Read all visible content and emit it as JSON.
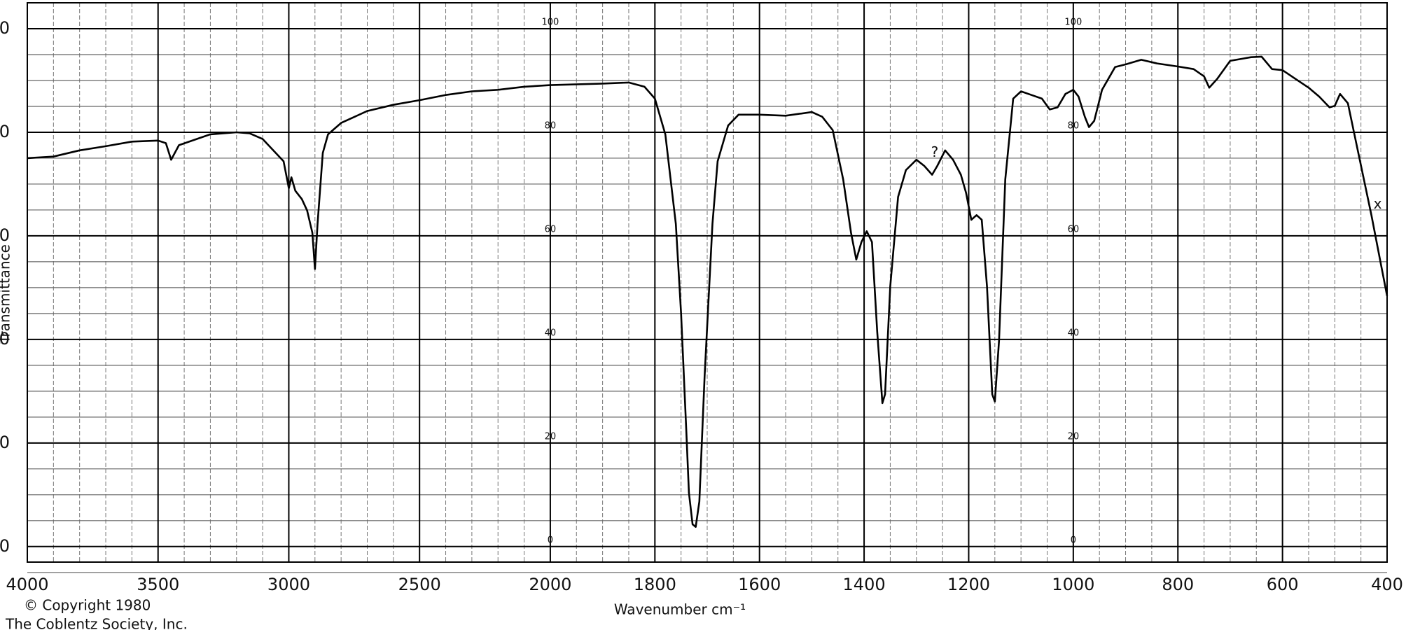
{
  "chart_data": {
    "type": "line",
    "x_label": "Wavenumber cm⁻¹",
    "y_label": "Transmittance",
    "copyright": [
      "© Copyright 1980",
      "The Coblentz Society, Inc."
    ],
    "xlim": [
      4000,
      400
    ],
    "x_scale_change": 2000,
    "ylim": [
      -3,
      105
    ],
    "xticks": [
      4000,
      3500,
      3000,
      2500,
      2000,
      1800,
      1600,
      1400,
      1200,
      1000,
      800,
      600,
      400
    ],
    "yticks": [
      0,
      20,
      40,
      60,
      80,
      100
    ],
    "inner_scale_at": [
      2000,
      1000
    ],
    "grid": true,
    "annotations": [
      {
        "text": "?",
        "x": 1265,
        "y": 76
      },
      {
        "text": "x",
        "x": 418,
        "y": 66
      }
    ],
    "series": [
      {
        "name": "Transmittance",
        "color": "#000000",
        "x": [
          4000,
          3900,
          3800,
          3700,
          3600,
          3500,
          3470,
          3450,
          3420,
          3300,
          3200,
          3150,
          3100,
          3050,
          3020,
          3000,
          2990,
          2975,
          2950,
          2930,
          2910,
          2900,
          2890,
          2870,
          2850,
          2800,
          2700,
          2600,
          2500,
          2400,
          2300,
          2200,
          2100,
          2000,
          1900,
          1850,
          1820,
          1800,
          1780,
          1760,
          1750,
          1740,
          1735,
          1728,
          1722,
          1715,
          1705,
          1690,
          1680,
          1660,
          1640,
          1600,
          1550,
          1500,
          1480,
          1460,
          1440,
          1425,
          1415,
          1405,
          1395,
          1385,
          1375,
          1365,
          1360,
          1350,
          1335,
          1320,
          1300,
          1285,
          1270,
          1260,
          1245,
          1230,
          1215,
          1205,
          1195,
          1185,
          1175,
          1165,
          1155,
          1150,
          1142,
          1130,
          1115,
          1100,
          1080,
          1060,
          1045,
          1030,
          1015,
          1000,
          990,
          978,
          970,
          960,
          945,
          920,
          900,
          870,
          840,
          800,
          770,
          750,
          740,
          725,
          700,
          660,
          640,
          620,
          600,
          575,
          550,
          530,
          510,
          500,
          490,
          475,
          455,
          430,
          410,
          400
        ],
        "values": [
          75,
          75.3,
          76.5,
          77.3,
          78.2,
          78.4,
          77.9,
          74.7,
          77.5,
          79.6,
          80,
          79.8,
          78.7,
          76,
          74.4,
          69.2,
          71.3,
          68.7,
          67.1,
          64.9,
          60.6,
          53.6,
          62.3,
          76,
          79.6,
          81.8,
          84.1,
          85.3,
          86.2,
          87.2,
          87.9,
          88.2,
          88.8,
          89.1,
          89.4,
          89.6,
          88.8,
          86.5,
          79.6,
          62.3,
          45,
          22.5,
          10.4,
          4.3,
          3.8,
          8.7,
          32.9,
          62.3,
          74.4,
          81.3,
          83.4,
          83.4,
          83.2,
          83.9,
          83,
          80.4,
          70.9,
          60.6,
          55.4,
          58.8,
          60.9,
          58.8,
          41.5,
          27.7,
          29.4,
          50.2,
          67.5,
          72.7,
          74.7,
          73.5,
          71.8,
          73.5,
          76.5,
          74.7,
          71.8,
          68.3,
          63.1,
          64,
          63.1,
          50.2,
          29.4,
          28,
          39.8,
          70.9,
          86.5,
          87.9,
          87.2,
          86.5,
          84.4,
          84.8,
          87.4,
          88.2,
          86.9,
          83,
          81,
          82.2,
          88.2,
          92.6,
          93.1,
          94,
          93.3,
          92.7,
          92.2,
          90.8,
          88.6,
          90.3,
          93.8,
          94.5,
          94.6,
          92.2,
          92,
          90.3,
          88.6,
          86.9,
          84.8,
          85.1,
          87.4,
          85.6,
          76,
          64,
          53.6,
          48.4
        ]
      }
    ]
  }
}
